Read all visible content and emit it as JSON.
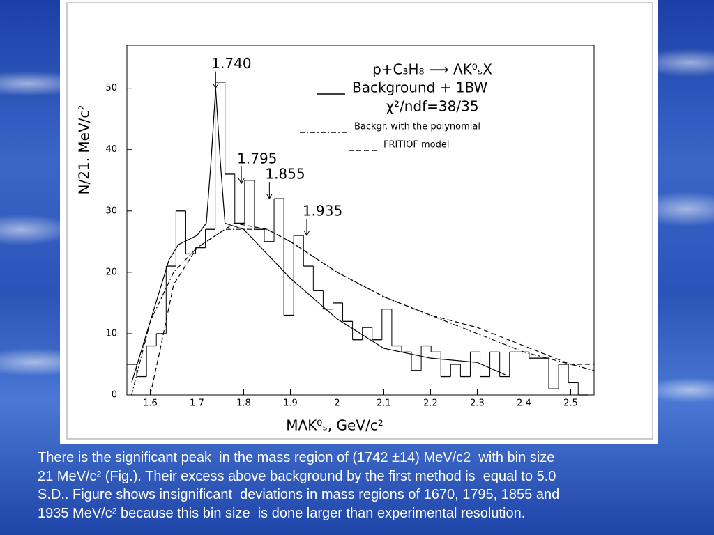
{
  "chart_data": {
    "type": "histogram",
    "title": "p+C₃H₈ ⟶ ΛK⁰ₛX",
    "xlabel": "MΛK⁰ₛ, GeV/c²",
    "ylabel": "N/21. MeV/c²",
    "bins": [
      1.55,
      1.571,
      1.592,
      1.613,
      1.634,
      1.655,
      1.676,
      1.697,
      1.718,
      1.739,
      1.76,
      1.781,
      1.802,
      1.823,
      1.844,
      1.865,
      1.886,
      1.907,
      1.928,
      1.949,
      1.97,
      1.991,
      2.012,
      2.033,
      2.054,
      2.075,
      2.096,
      2.117,
      2.138,
      2.159,
      2.18,
      2.201,
      2.222,
      2.243,
      2.264,
      2.285,
      2.306,
      2.327,
      2.348,
      2.369,
      2.39,
      2.411,
      2.432,
      2.453,
      2.474,
      2.495,
      2.516,
      2.537
    ],
    "values": [
      5,
      3,
      8,
      10,
      21,
      30,
      23,
      24,
      27,
      51,
      36,
      28,
      35,
      27,
      25,
      32,
      13,
      26,
      21,
      17,
      14,
      15,
      12,
      9,
      11,
      9,
      14,
      8,
      7,
      4,
      8,
      7,
      3,
      5,
      3,
      7,
      3,
      7,
      3,
      7,
      7,
      6,
      6,
      1,
      5,
      2,
      0
    ],
    "color": "#000000",
    "curves": [
      {
        "name": "Background + 1BW",
        "style": "solid",
        "color": "#000000",
        "x": [
          1.56,
          1.6,
          1.64,
          1.66,
          1.7,
          1.72,
          1.73,
          1.74,
          1.75,
          1.76,
          1.8,
          1.9,
          2.0,
          2.1,
          2.2,
          2.3,
          2.36
        ],
        "y": [
          2,
          12,
          22,
          24.5,
          26,
          28,
          38,
          50,
          38,
          28,
          27,
          19,
          12.4,
          7.6,
          6,
          5.3,
          3.3
        ]
      },
      {
        "name": "Backgr. with the polynomial",
        "style": "dashdot",
        "color": "#000000",
        "x": [
          1.56,
          1.6,
          1.65,
          1.7,
          1.76,
          1.85,
          1.9,
          2.0,
          2.1,
          2.2,
          2.3,
          2.4,
          2.5,
          2.55
        ],
        "y": [
          0,
          12,
          20,
          24,
          27,
          27,
          25,
          20,
          16,
          13,
          10,
          7,
          5,
          4
        ]
      },
      {
        "name": "FRITIOF model",
        "style": "dashed",
        "color": "#000000",
        "x": [
          1.6,
          1.62,
          1.65,
          1.7,
          1.78,
          1.85,
          1.9,
          2.0,
          2.1,
          2.2,
          2.3,
          2.4,
          2.5,
          2.55
        ],
        "y": [
          0,
          7,
          18,
          24,
          28,
          27,
          25,
          20,
          16,
          13,
          11,
          8,
          5,
          5
        ]
      }
    ],
    "fit_quality": "χ²/ndf=38/35",
    "annotations": [
      {
        "label": "1.740",
        "x": 1.74,
        "y": 50
      },
      {
        "label": "1.795",
        "x": 1.795,
        "y": 34.5
      },
      {
        "label": "1.855",
        "x": 1.855,
        "y": 32
      },
      {
        "label": "1.935",
        "x": 1.935,
        "y": 26
      }
    ],
    "xlim": [
      1.55,
      2.55
    ],
    "ylim": [
      0,
      57
    ],
    "xticks": [
      1.6,
      1.7,
      1.8,
      1.9,
      2,
      2.1,
      2.2,
      2.3,
      2.4,
      2.5
    ],
    "yticks": [
      0,
      10,
      20,
      30,
      40,
      50
    ]
  },
  "caption": {
    "lines": [
      "There is the significant peak  in the mass region of (1742 ±14) MeV/c2  with bin size",
      "21 MeV/c² (Fig.). Their excess above background by the first method is  equal to 5.0",
      "S.D.. Figure shows insignificant  deviations in mass regions of 1670, 1795, 1855 and",
      "1935 MeV/c² because this bin size  is done larger than experimental resolution."
    ]
  }
}
